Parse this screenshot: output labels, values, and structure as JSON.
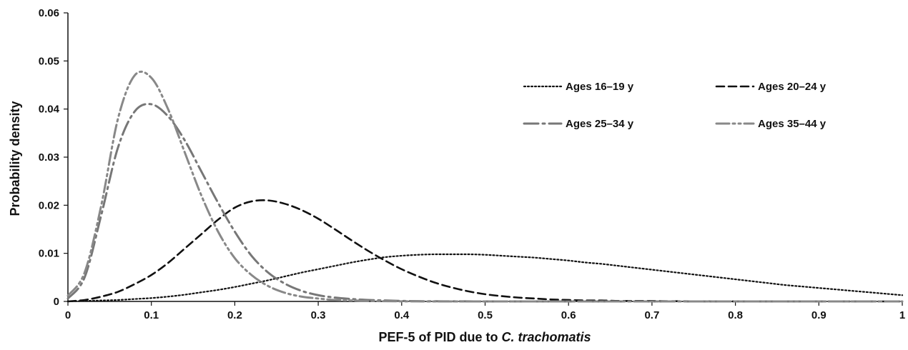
{
  "chart_data": {
    "type": "line",
    "title": "",
    "xlabel_prefix": "PEF-5 of PID due to ",
    "xlabel_italic": "C. trachomatis",
    "ylabel": "Probability density",
    "xlim": [
      0,
      1
    ],
    "ylim": [
      0,
      0.06
    ],
    "x_ticks": [
      "0",
      "0.1",
      "0.2",
      "0.3",
      "0.4",
      "0.5",
      "0.6",
      "0.7",
      "0.8",
      "0.9",
      "1"
    ],
    "y_ticks": [
      "0",
      "0.01",
      "0.02",
      "0.03",
      "0.04",
      "0.05",
      "0.06"
    ],
    "legend_position": "top-right",
    "x": [
      0,
      0.02,
      0.04,
      0.06,
      0.08,
      0.1,
      0.12,
      0.14,
      0.16,
      0.18,
      0.2,
      0.22,
      0.24,
      0.26,
      0.28,
      0.3,
      0.32,
      0.34,
      0.36,
      0.38,
      0.4,
      0.42,
      0.44,
      0.46,
      0.48,
      0.5,
      0.52,
      0.54,
      0.56,
      0.58,
      0.6,
      0.62,
      0.64,
      0.66,
      0.68,
      0.7,
      0.72,
      0.74,
      0.76,
      0.78,
      0.8,
      0.82,
      0.84,
      0.86,
      0.88,
      0.9,
      0.92,
      0.94,
      0.96,
      0.98,
      1.0
    ],
    "series": [
      {
        "name": "Ages 16–19 y",
        "color": "#111111",
        "style": "dotted",
        "values": [
          0,
          0.0001,
          0.0002,
          0.0003,
          0.0005,
          0.0007,
          0.001,
          0.0014,
          0.0019,
          0.0024,
          0.003,
          0.0037,
          0.0044,
          0.0052,
          0.006,
          0.0067,
          0.0074,
          0.0081,
          0.0087,
          0.0092,
          0.0095,
          0.0097,
          0.0098,
          0.0098,
          0.0098,
          0.0097,
          0.0095,
          0.0093,
          0.0091,
          0.0088,
          0.0085,
          0.0081,
          0.0078,
          0.0074,
          0.007,
          0.0066,
          0.0062,
          0.0058,
          0.0054,
          0.005,
          0.0046,
          0.0042,
          0.0038,
          0.0034,
          0.0031,
          0.0028,
          0.0025,
          0.0022,
          0.0019,
          0.0016,
          0.0013
        ]
      },
      {
        "name": "Ages 20–24 y",
        "color": "#111111",
        "style": "dashed",
        "values": [
          0,
          0.0003,
          0.001,
          0.002,
          0.0036,
          0.0055,
          0.008,
          0.011,
          0.014,
          0.017,
          0.0195,
          0.0208,
          0.021,
          0.0203,
          0.019,
          0.0172,
          0.015,
          0.0127,
          0.0105,
          0.0085,
          0.0067,
          0.0052,
          0.0039,
          0.0029,
          0.0021,
          0.0015,
          0.0011,
          0.0008,
          0.0006,
          0.0004,
          0.0003,
          0.0002,
          0.0002,
          0.0001,
          0.0001,
          0.0001,
          5e-05,
          4e-05,
          3e-05,
          2e-05,
          1e-05,
          0,
          0,
          0,
          0,
          0,
          0,
          0,
          0,
          0,
          0
        ]
      },
      {
        "name": "Ages 25–34 y",
        "color": "#777777",
        "style": "longdash-dot",
        "values": [
          0.0006,
          0.005,
          0.018,
          0.032,
          0.0395,
          0.041,
          0.0385,
          0.0335,
          0.027,
          0.0205,
          0.0145,
          0.0095,
          0.006,
          0.0037,
          0.0022,
          0.0013,
          0.0008,
          0.0005,
          0.0003,
          0.0002,
          0.0001,
          5e-05,
          3e-05,
          2e-05,
          1e-05,
          0,
          0,
          0,
          0,
          0,
          0,
          0,
          0,
          0,
          0,
          0,
          0,
          0,
          0,
          0,
          0,
          0,
          0,
          0,
          0,
          0,
          0,
          0,
          0,
          0,
          0
        ]
      },
      {
        "name": "Ages 35–44 y",
        "color": "#888888",
        "style": "dash-dot-dot",
        "values": [
          0.0012,
          0.006,
          0.02,
          0.038,
          0.047,
          0.0465,
          0.04,
          0.031,
          0.022,
          0.0145,
          0.009,
          0.0055,
          0.0032,
          0.0018,
          0.001,
          0.0006,
          0.0003,
          0.0002,
          0.0001,
          5e-05,
          2e-05,
          1e-05,
          0,
          0,
          0,
          0,
          0,
          0,
          0,
          0,
          0,
          0,
          0,
          0,
          0,
          0,
          0,
          0,
          0,
          0,
          0,
          0,
          0,
          0,
          0,
          0,
          0,
          0,
          0,
          0,
          0
        ]
      }
    ]
  }
}
